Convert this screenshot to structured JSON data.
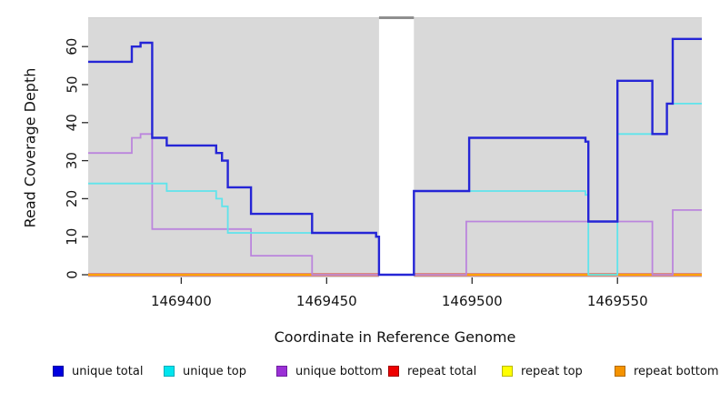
{
  "chart_data": {
    "type": "line",
    "subtype": "step",
    "title": "",
    "xlabel": "Coordinate in Reference Genome",
    "ylabel": "Read Coverage Depth",
    "xlim": [
      1469368,
      1469579
    ],
    "ylim": [
      0,
      67
    ],
    "x_ticks": [
      1469400,
      1469450,
      1469500,
      1469550
    ],
    "y_ticks": [
      0,
      10,
      20,
      30,
      40,
      50,
      60
    ],
    "grid": "off",
    "plot_bg_color": "#d9d9d9",
    "masked_region": {
      "x_start": 1469468,
      "x_end": 1469480,
      "fill": "#ffffff",
      "top_cap_color": "#8f8f8f"
    },
    "legend_position": "bottom",
    "series": [
      {
        "key": "repeat-top",
        "label": "repeat top",
        "line_color": "#ffee00",
        "width": 1.4,
        "segments": [
          {
            "points": [
              [
                1469368,
                0
              ]
            ],
            "end": 1469468
          },
          {
            "points": [
              [
                1469480,
                0
              ]
            ],
            "end": 1469579
          }
        ]
      },
      {
        "key": "repeat-total",
        "label": "repeat total",
        "line_color": "#d4485e",
        "width": 3.2,
        "segments": [
          {
            "points": [
              [
                1469368,
                0
              ]
            ],
            "end": 1469468
          },
          {
            "points": [
              [
                1469480,
                0
              ]
            ],
            "end": 1469579
          }
        ]
      },
      {
        "key": "repeat-bottom",
        "label": "repeat bottom",
        "line_color": "#ffa200",
        "width": 2.2,
        "segments": [
          {
            "points": [
              [
                1469368,
                0
              ]
            ],
            "end": 1469468
          },
          {
            "points": [
              [
                1469480,
                0
              ]
            ],
            "end": 1469579
          }
        ]
      },
      {
        "key": "unique-bottom",
        "label": "unique bottom",
        "line_color": "#bb85dd",
        "width": 1.8,
        "segments": [
          {
            "points": [
              [
                1469368,
                32
              ],
              [
                1469383,
                36
              ],
              [
                1469386,
                37
              ],
              [
                1469390,
                12
              ],
              [
                1469424,
                5
              ],
              [
                1469445,
                0
              ]
            ],
            "end": 1469468
          },
          {
            "points": [
              [
                1469480,
                0
              ],
              [
                1469498,
                14
              ],
              [
                1469562,
                0
              ],
              [
                1469569,
                17
              ]
            ],
            "end": 1469579
          }
        ]
      },
      {
        "key": "unique-top",
        "label": "unique top",
        "line_color": "#5fe4ec",
        "width": 1.8,
        "segments": [
          {
            "points": [
              [
                1469368,
                24
              ],
              [
                1469395,
                22
              ],
              [
                1469412,
                20
              ],
              [
                1469414,
                18
              ],
              [
                1469416,
                11
              ],
              [
                1469467,
                10
              ],
              [
                1469468,
                0
              ]
            ],
            "end": 1469468
          },
          {
            "points": [
              [
                1469480,
                22
              ],
              [
                1469539,
                21
              ],
              [
                1469540,
                0
              ],
              [
                1469550,
                37
              ],
              [
                1469567,
                45
              ]
            ],
            "end": 1469579
          }
        ]
      },
      {
        "key": "unique-total",
        "label": "unique total",
        "line_color": "#2525d6",
        "width": 2.4,
        "segments": [
          {
            "points": [
              [
                1469368,
                56
              ],
              [
                1469383,
                60
              ],
              [
                1469386,
                61
              ],
              [
                1469390,
                36
              ],
              [
                1469395,
                34
              ],
              [
                1469412,
                32
              ],
              [
                1469414,
                30
              ],
              [
                1469416,
                23
              ],
              [
                1469424,
                16
              ],
              [
                1469445,
                11
              ],
              [
                1469467,
                10
              ],
              [
                1469468,
                0
              ],
              [
                1469480,
                22
              ],
              [
                1469499,
                36
              ],
              [
                1469539,
                35
              ],
              [
                1469540,
                14
              ],
              [
                1469550,
                51
              ],
              [
                1469562,
                37
              ],
              [
                1469567,
                45
              ],
              [
                1469569,
                62
              ]
            ],
            "end": 1469579
          }
        ]
      }
    ]
  },
  "legend": {
    "items": [
      {
        "label": "unique total",
        "fill": "#0000e0",
        "border": "#0000a0"
      },
      {
        "label": "unique top",
        "fill": "#00e5ee",
        "border": "#00aab8"
      },
      {
        "label": "unique bottom",
        "fill": "#9b30d6",
        "border": "#6f1fa0"
      },
      {
        "label": "repeat total",
        "fill": "#ee0000",
        "border": "#a00000"
      },
      {
        "label": "repeat top",
        "fill": "#ffff00",
        "border": "#b8b800"
      },
      {
        "label": "repeat bottom",
        "fill": "#f59300",
        "border": "#b06a00"
      }
    ]
  }
}
